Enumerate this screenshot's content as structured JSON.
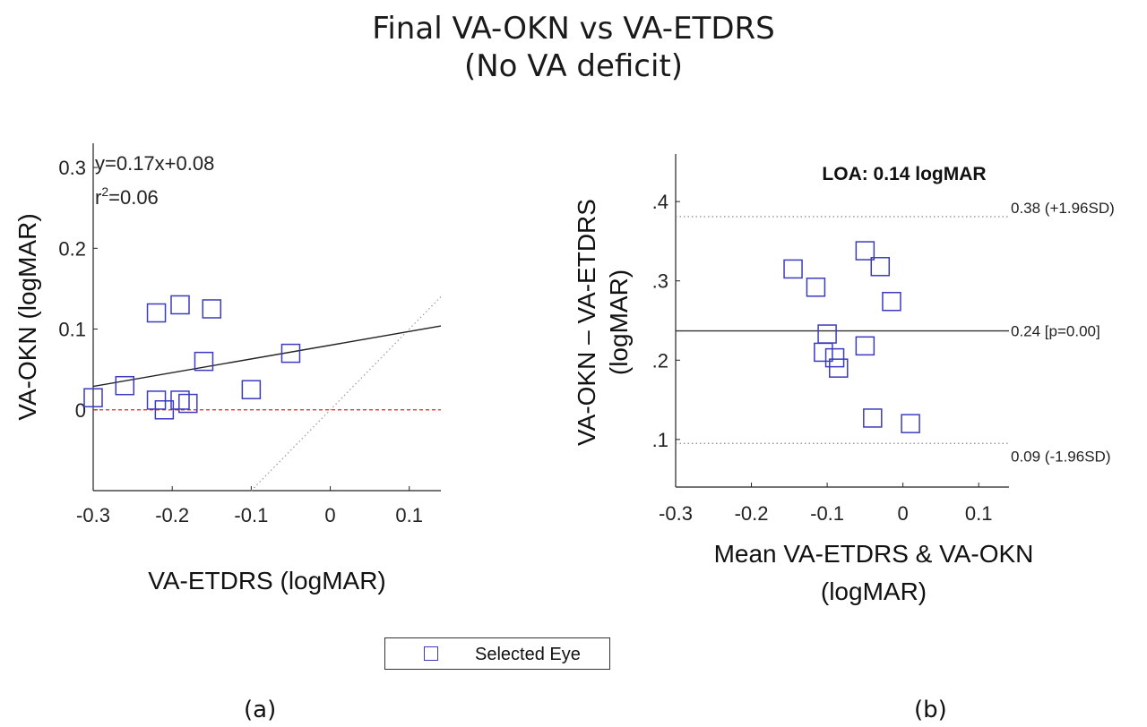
{
  "figure": {
    "title_line1": "Final VA-OKN vs VA-ETDRS",
    "title_line2": "(No VA deficit)",
    "legend_label": "Selected Eye",
    "subfigure_a": "(a)",
    "subfigure_b": "(b)"
  },
  "chart_data": [
    {
      "type": "scatter",
      "panel": "(a)",
      "xlabel": "VA-ETDRS (logMAR)",
      "ylabel": "VA-OKN (logMAR)",
      "xlim": [
        -0.3,
        0.14
      ],
      "ylim": [
        -0.1,
        0.33
      ],
      "xticks": [
        -0.3,
        -0.2,
        -0.1,
        0,
        0.1
      ],
      "xtick_labels": [
        "-0.3",
        "-0.2",
        "-0.1",
        "0",
        "0.1"
      ],
      "yticks": [
        0,
        0.1,
        0.2,
        0.3
      ],
      "ytick_labels": [
        "0",
        "0.1",
        "0.2",
        "0.3"
      ],
      "equation_text": "y=0.17x+0.08",
      "r2_prefix": "r",
      "r2_sup": "2",
      "r2_suffix": "=0.06",
      "regression": {
        "slope": 0.17,
        "intercept": 0.08
      },
      "reference_zero_line": {
        "y": 0,
        "color": "#e02020",
        "style": "dashed"
      },
      "identity_line": {
        "color": "#999999",
        "style": "dotted"
      },
      "marker_color": "#3b3bbf",
      "series": [
        {
          "name": "Selected Eye",
          "x": [
            -0.3,
            -0.26,
            -0.22,
            -0.22,
            -0.21,
            -0.19,
            -0.19,
            -0.18,
            -0.16,
            -0.15,
            -0.1,
            -0.05
          ],
          "y": [
            0.015,
            0.03,
            0.12,
            0.012,
            0.0,
            0.13,
            0.012,
            0.008,
            0.06,
            0.125,
            0.025,
            0.07
          ]
        }
      ]
    },
    {
      "type": "scatter",
      "panel": "(b)",
      "title": "LOA: 0.14 logMAR",
      "xlabel_line1": "Mean VA-ETDRS & VA-OKN",
      "xlabel_line2": "(logMAR)",
      "ylabel_line1": "VA-OKN – VA-ETDRS",
      "ylabel_line2": "(logMAR)",
      "xlim": [
        -0.3,
        0.14
      ],
      "ylim": [
        0.04,
        0.46
      ],
      "xticks": [
        -0.3,
        -0.2,
        -0.1,
        0,
        0.1
      ],
      "xtick_labels": [
        "-0.3",
        "-0.2",
        "-0.1",
        "0",
        "0.1"
      ],
      "yticks": [
        0.1,
        0.2,
        0.3,
        0.4
      ],
      "ytick_labels": [
        ".1",
        ".2",
        ".3",
        ".4"
      ],
      "mean_line": {
        "y": 0.237,
        "label": "0.24 [p=0.00]"
      },
      "upper_loa": {
        "y": 0.381,
        "label": "0.38 (+1.96SD)"
      },
      "lower_loa": {
        "y": 0.095,
        "label": "0.09 (-1.96SD)"
      },
      "marker_color": "#3b3bbf",
      "series": [
        {
          "name": "Selected Eye",
          "x": [
            -0.145,
            -0.115,
            -0.105,
            -0.1,
            -0.09,
            -0.085,
            -0.05,
            -0.05,
            -0.04,
            -0.03,
            -0.015,
            0.01
          ],
          "y": [
            0.315,
            0.292,
            0.21,
            0.233,
            0.203,
            0.19,
            0.338,
            0.218,
            0.127,
            0.318,
            0.274,
            0.12
          ]
        }
      ]
    }
  ]
}
